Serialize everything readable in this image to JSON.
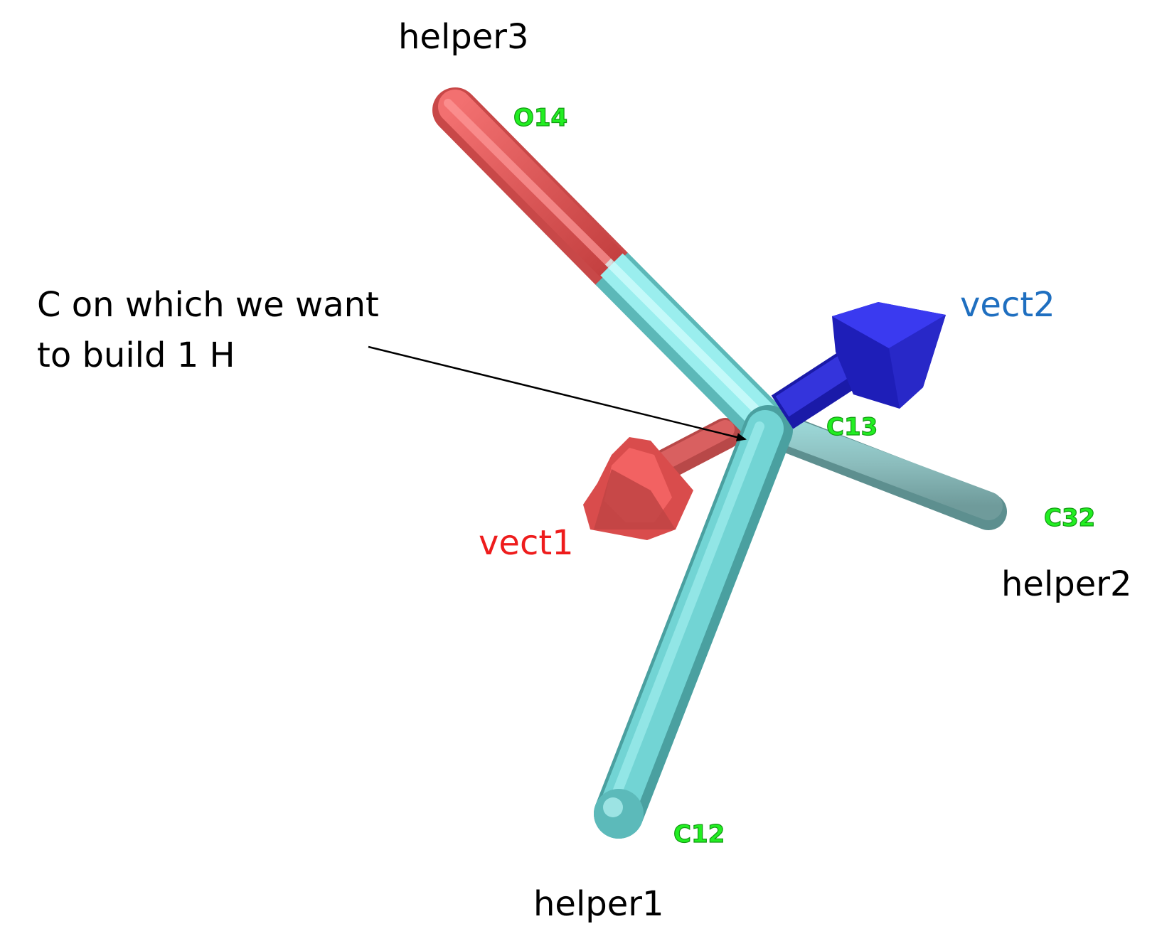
{
  "figure": {
    "annotation": [
      "C on which we want",
      "to build 1 H"
    ],
    "helpers": {
      "helper1": "helper1",
      "helper2": "helper2",
      "helper3": "helper3"
    },
    "vectors": {
      "vect1": {
        "label": "vect1",
        "color": "#ee1c1c"
      },
      "vect2": {
        "label": "vect2",
        "color": "#1f6fc0"
      }
    },
    "atoms": {
      "o14": "O14",
      "c13": "C13",
      "c32": "C32",
      "c12": "C12"
    },
    "colors": {
      "carbon_bond": "#6ccccc",
      "oxygen_bond": "#e85555",
      "vect1_arrow": "#e85555",
      "vect2_arrow": "#2a2ad8",
      "atom_label": "#22ee22"
    }
  }
}
